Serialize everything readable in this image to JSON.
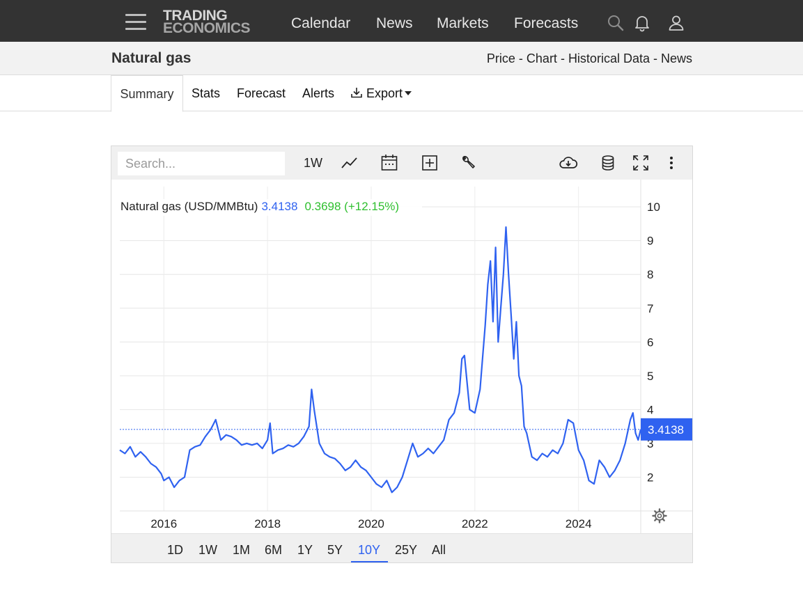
{
  "header": {
    "logo_line1": "TRADING",
    "logo_line2": "ECONOMICS",
    "nav": [
      "Calendar",
      "News",
      "Markets",
      "Forecasts"
    ],
    "icons": [
      "menu-icon",
      "search-icon",
      "bell-icon",
      "user-icon"
    ]
  },
  "subbar": {
    "title": "Natural gas",
    "links": [
      "Price",
      "Chart",
      "Historical Data",
      "News"
    ],
    "separator": " - "
  },
  "tabs": {
    "items": [
      "Summary",
      "Stats",
      "Forecast",
      "Alerts",
      "Export"
    ],
    "active": "Summary"
  },
  "toolbar": {
    "search_placeholder": "Search...",
    "interval": "1W",
    "icons": [
      "line-chart-icon",
      "calendar-icon",
      "add-box-icon",
      "wrench-icon",
      "cloud-download-icon",
      "database-icon",
      "fullscreen-icon",
      "more-vert-icon"
    ]
  },
  "legend": {
    "name": "Natural gas (USD/MMBtu)",
    "price": "3.4138",
    "change": "0.3698 (+12.15%)"
  },
  "last_price_label": "3.4138",
  "range_buttons": [
    "1D",
    "1W",
    "1M",
    "6M",
    "1Y",
    "5Y",
    "10Y",
    "25Y",
    "All"
  ],
  "active_range": "10Y",
  "colors": {
    "line": "#2f62f0",
    "change_positive": "#2fbf2f",
    "nav_bg": "#333333"
  },
  "chart_data": {
    "type": "line",
    "title": "Natural gas (USD/MMBtu)",
    "xlabel": "",
    "ylabel": "",
    "x_ticks": [
      "2016",
      "2018",
      "2020",
      "2022",
      "2024"
    ],
    "y_ticks": [
      2,
      3,
      4,
      5,
      6,
      7,
      8,
      9,
      10
    ],
    "ylim": [
      1.0,
      10.6
    ],
    "xlim": [
      2015.15,
      2025.2
    ],
    "grid": true,
    "last_value": 3.4138,
    "series": [
      {
        "name": "Natural gas (USD/MMBtu)",
        "x": [
          2015.15,
          2015.25,
          2015.35,
          2015.45,
          2015.55,
          2015.65,
          2015.75,
          2015.85,
          2015.95,
          2016.0,
          2016.1,
          2016.2,
          2016.3,
          2016.4,
          2016.5,
          2016.6,
          2016.7,
          2016.8,
          2016.9,
          2016.95,
          2017.0,
          2017.1,
          2017.2,
          2017.3,
          2017.4,
          2017.5,
          2017.6,
          2017.7,
          2017.8,
          2017.9,
          2018.0,
          2018.05,
          2018.1,
          2018.2,
          2018.3,
          2018.4,
          2018.5,
          2018.6,
          2018.7,
          2018.8,
          2018.85,
          2018.9,
          2019.0,
          2019.1,
          2019.2,
          2019.3,
          2019.4,
          2019.5,
          2019.6,
          2019.7,
          2019.8,
          2019.9,
          2020.0,
          2020.1,
          2020.2,
          2020.3,
          2020.4,
          2020.5,
          2020.6,
          2020.7,
          2020.8,
          2020.9,
          2021.0,
          2021.1,
          2021.2,
          2021.3,
          2021.4,
          2021.5,
          2021.6,
          2021.7,
          2021.75,
          2021.8,
          2021.9,
          2022.0,
          2022.1,
          2022.2,
          2022.25,
          2022.3,
          2022.35,
          2022.4,
          2022.45,
          2022.5,
          2022.55,
          2022.6,
          2022.65,
          2022.7,
          2022.75,
          2022.8,
          2022.85,
          2022.9,
          2022.95,
          2023.0,
          2023.1,
          2023.2,
          2023.3,
          2023.4,
          2023.5,
          2023.6,
          2023.7,
          2023.8,
          2023.9,
          2024.0,
          2024.1,
          2024.2,
          2024.3,
          2024.4,
          2024.5,
          2024.6,
          2024.7,
          2024.8,
          2024.9,
          2025.0,
          2025.05,
          2025.1,
          2025.15,
          2025.2
        ],
        "y": [
          2.8,
          2.7,
          2.9,
          2.6,
          2.75,
          2.6,
          2.4,
          2.3,
          2.1,
          1.9,
          2.0,
          1.7,
          1.9,
          2.0,
          2.8,
          2.9,
          2.95,
          3.2,
          3.4,
          3.55,
          3.7,
          3.1,
          3.25,
          3.2,
          3.1,
          2.95,
          3.0,
          2.95,
          3.0,
          2.85,
          3.1,
          3.6,
          2.7,
          2.8,
          2.85,
          2.95,
          2.9,
          3.0,
          3.2,
          3.5,
          4.6,
          4.0,
          3.0,
          2.7,
          2.6,
          2.55,
          2.4,
          2.2,
          2.3,
          2.5,
          2.3,
          2.2,
          2.0,
          1.8,
          1.7,
          1.9,
          1.55,
          1.7,
          2.0,
          2.5,
          3.0,
          2.6,
          2.7,
          2.85,
          2.7,
          2.9,
          3.1,
          3.7,
          3.9,
          4.5,
          5.5,
          5.6,
          4.0,
          3.9,
          4.6,
          6.5,
          7.7,
          8.4,
          6.6,
          8.8,
          6.0,
          7.0,
          8.0,
          9.4,
          8.0,
          6.8,
          5.5,
          6.6,
          5.0,
          4.7,
          3.5,
          3.3,
          2.6,
          2.5,
          2.7,
          2.6,
          2.8,
          2.7,
          3.0,
          3.7,
          3.6,
          2.8,
          2.5,
          1.9,
          1.8,
          2.5,
          2.3,
          2.0,
          2.2,
          2.5,
          3.0,
          3.7,
          3.9,
          3.3,
          3.1,
          3.4138
        ]
      }
    ]
  }
}
